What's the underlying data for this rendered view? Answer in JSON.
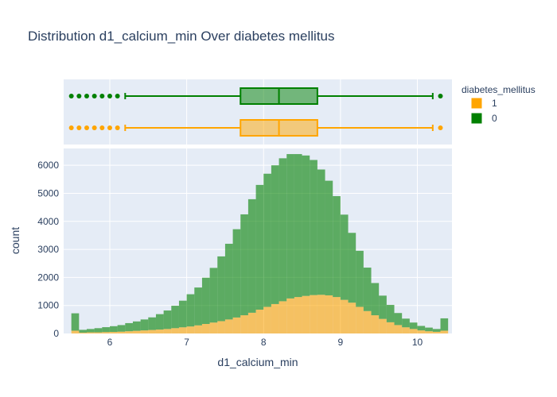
{
  "chart_data": {
    "title": "Distribution d1_calcium_min Over diabetes mellitus",
    "xlabel": "d1_calcium_min",
    "ylabel": "count",
    "xlim": [
      5.4,
      10.45
    ],
    "ylim": [
      0,
      6600
    ],
    "x_ticks": [
      6,
      7,
      8,
      9,
      10
    ],
    "y_ticks": [
      0,
      1000,
      2000,
      3000,
      4000,
      5000,
      6000
    ],
    "y_tick_labels": [
      "0",
      "1000",
      "2000",
      "3000",
      "4000",
      "5000",
      "6000"
    ],
    "legend": {
      "title": "diabetes_mellitus",
      "placement": "top-right",
      "items": [
        {
          "label": "1",
          "color": "#FFA500"
        },
        {
          "label": "0",
          "color": "#008000"
        }
      ]
    },
    "colors": {
      "one": "#FFA500",
      "zero": "#008000"
    },
    "histogram": {
      "type": "bar",
      "barmode": "stack",
      "bin_width": 0.1,
      "bin_starts": [
        5.5,
        5.6,
        5.7,
        5.8,
        5.9,
        6.0,
        6.1,
        6.2,
        6.3,
        6.4,
        6.5,
        6.6,
        6.7,
        6.8,
        6.9,
        7.0,
        7.1,
        7.2,
        7.3,
        7.4,
        7.5,
        7.6,
        7.7,
        7.8,
        7.9,
        8.0,
        8.1,
        8.2,
        8.3,
        8.4,
        8.5,
        8.6,
        8.7,
        8.8,
        8.9,
        9.0,
        9.1,
        9.2,
        9.3,
        9.4,
        9.5,
        9.6,
        9.7,
        9.8,
        9.9,
        10.0,
        10.1,
        10.2,
        10.3
      ],
      "series": [
        {
          "name": "1",
          "values": [
            100,
            30,
            40,
            40,
            50,
            55,
            65,
            80,
            95,
            110,
            125,
            140,
            160,
            190,
            220,
            250,
            290,
            340,
            390,
            440,
            500,
            570,
            650,
            740,
            850,
            950,
            1050,
            1150,
            1250,
            1300,
            1340,
            1370,
            1380,
            1360,
            1300,
            1200,
            1100,
            950,
            800,
            650,
            520,
            400,
            300,
            220,
            160,
            110,
            80,
            60,
            100
          ]
        },
        {
          "name": "0",
          "values": [
            620,
            100,
            120,
            150,
            175,
            205,
            235,
            290,
            335,
            390,
            450,
            550,
            660,
            800,
            950,
            1150,
            1350,
            1650,
            1950,
            2310,
            2700,
            3150,
            3600,
            4050,
            4450,
            4750,
            4950,
            5100,
            5150,
            5100,
            5010,
            4820,
            4470,
            4090,
            3600,
            3040,
            2490,
            2000,
            1550,
            1150,
            830,
            620,
            430,
            310,
            230,
            160,
            130,
            100,
            440
          ]
        }
      ]
    },
    "box": {
      "series": [
        {
          "name": "0",
          "q1": 7.7,
          "median": 8.2,
          "q3": 8.7,
          "lower_fence": 6.2,
          "upper_fence": 10.2,
          "outliers": [
            5.5,
            5.6,
            5.7,
            5.8,
            5.9,
            6.0,
            6.1,
            10.3
          ]
        },
        {
          "name": "1",
          "q1": 7.7,
          "median": 8.2,
          "q3": 8.7,
          "lower_fence": 6.2,
          "upper_fence": 10.2,
          "outliers": [
            5.5,
            5.6,
            5.7,
            5.8,
            5.9,
            6.0,
            6.1,
            10.3
          ]
        }
      ]
    }
  }
}
